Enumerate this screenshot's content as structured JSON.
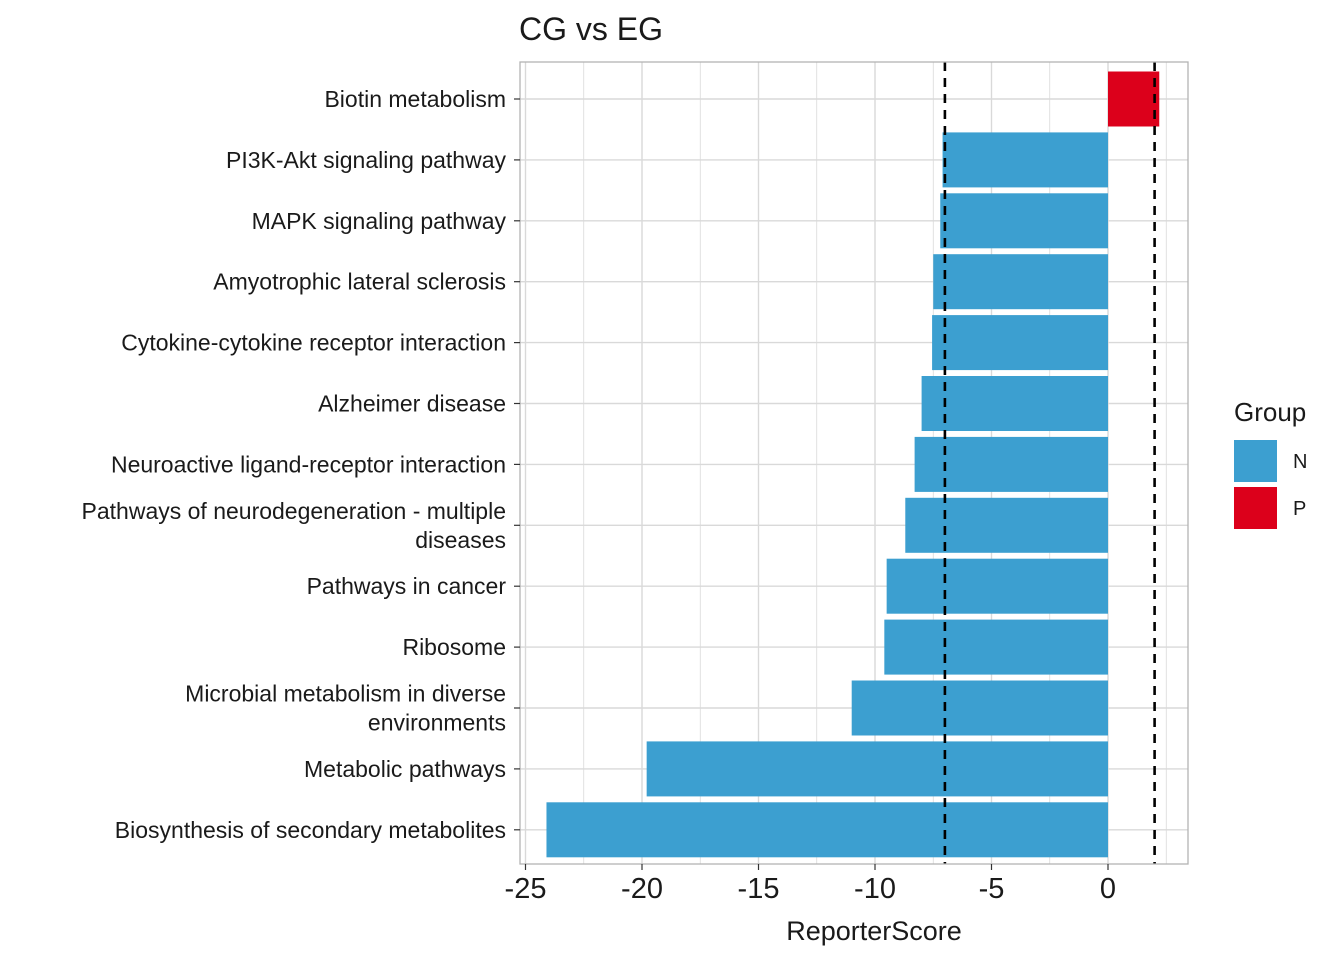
{
  "chart_data": {
    "type": "bar",
    "orientation": "horizontal",
    "title": "CG vs EG",
    "xlabel": "ReporterScore",
    "ylabel": "",
    "xlim": [
      -25.0,
      3.5
    ],
    "xticks": [
      -25,
      -20,
      -15,
      -10,
      -5,
      0
    ],
    "tick_labels": [
      "-25",
      "-20",
      "-15",
      "-10",
      "-5",
      "0"
    ],
    "grid": true,
    "threshold_lines": [
      -7,
      2
    ],
    "categories": [
      "Biotin metabolism",
      "PI3K-Akt signaling pathway",
      "MAPK signaling pathway",
      "Amyotrophic lateral sclerosis",
      "Cytokine-cytokine receptor interaction",
      "Alzheimer disease",
      "Neuroactive ligand-receptor interaction",
      "Pathways of neurodegeneration - multiple diseases",
      "Pathways in cancer",
      "Ribosome",
      "Microbial metabolism in diverse environments",
      "Metabolic pathways",
      "Biosynthesis of secondary metabolites"
    ],
    "category_lines": [
      [
        "Biotin metabolism"
      ],
      [
        "PI3K-Akt signaling pathway"
      ],
      [
        "MAPK signaling pathway"
      ],
      [
        "Amyotrophic lateral sclerosis"
      ],
      [
        "Cytokine-cytokine receptor interaction"
      ],
      [
        "Alzheimer disease"
      ],
      [
        "Neuroactive ligand-receptor interaction"
      ],
      [
        "Pathways of neurodegeneration - multiple",
        "diseases"
      ],
      [
        "Pathways in cancer"
      ],
      [
        "Ribosome"
      ],
      [
        "Microbial metabolism in diverse",
        "environments"
      ],
      [
        "Metabolic pathways"
      ],
      [
        "Biosynthesis of secondary metabolites"
      ]
    ],
    "values": [
      2.2,
      -7.1,
      -7.2,
      -7.5,
      -7.55,
      -8.0,
      -8.3,
      -8.7,
      -9.5,
      -9.6,
      -11.0,
      -19.8,
      -24.1
    ],
    "groups": [
      "P",
      "N",
      "N",
      "N",
      "N",
      "N",
      "N",
      "N",
      "N",
      "N",
      "N",
      "N",
      "N"
    ],
    "legend": {
      "title": "Group",
      "position": "right",
      "entries": [
        {
          "label": "N",
          "color": "#3c9fd0"
        },
        {
          "label": "P",
          "color": "#dc001b"
        }
      ]
    },
    "colors": {
      "N": "#3c9fd0",
      "P": "#dc001b",
      "threshold": "#000000",
      "grid": "#d9d9d9",
      "panel_border": "#b3b3b3"
    }
  }
}
